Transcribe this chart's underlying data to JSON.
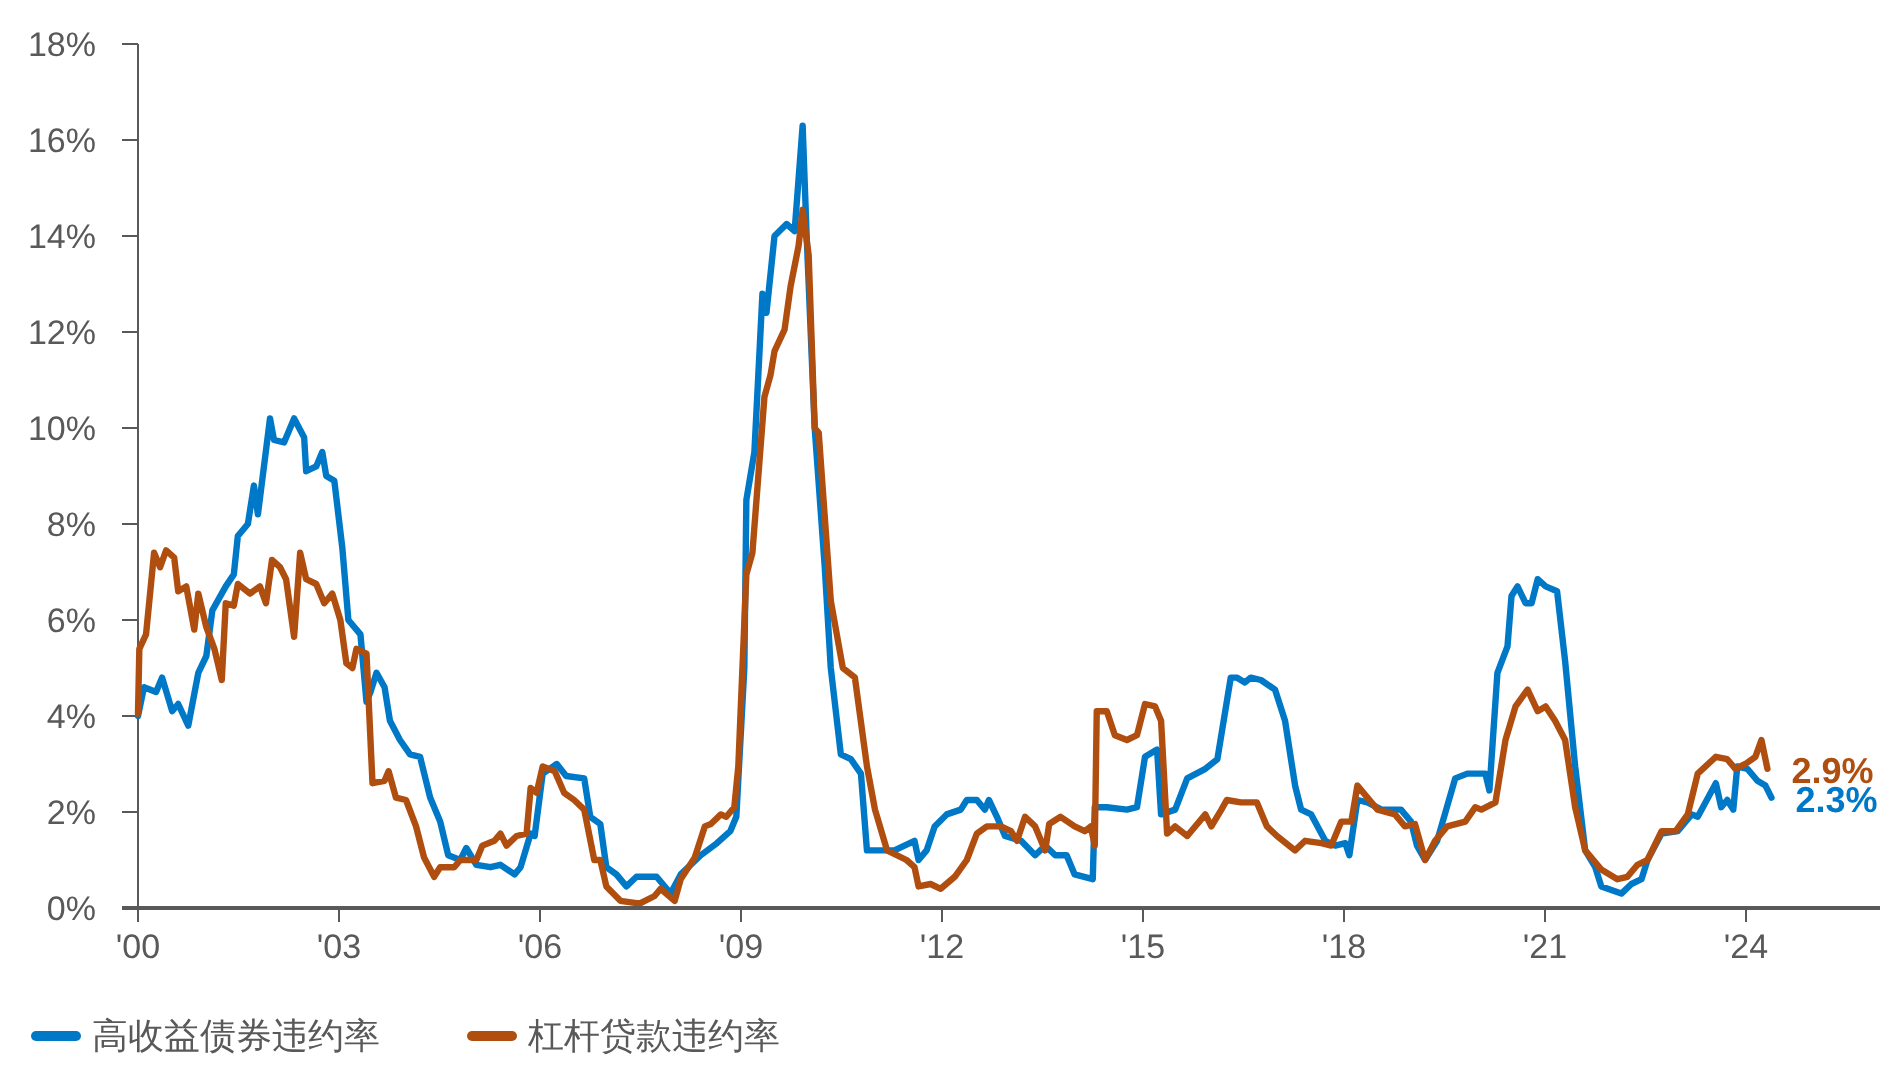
{
  "chart_data": {
    "type": "line",
    "xlim": [
      2000,
      2026
    ],
    "xticks": [
      {
        "value": 2000,
        "label": "'00"
      },
      {
        "value": 2003,
        "label": "'03"
      },
      {
        "value": 2006,
        "label": "'06"
      },
      {
        "value": 2009,
        "label": "'09"
      },
      {
        "value": 2012,
        "label": "'12"
      },
      {
        "value": 2015,
        "label": "'15"
      },
      {
        "value": 2018,
        "label": "'18"
      },
      {
        "value": 2021,
        "label": "'21"
      },
      {
        "value": 2024,
        "label": "'24"
      }
    ],
    "ylim": [
      0,
      18
    ],
    "yticks": [
      {
        "value": 0,
        "label": "0%"
      },
      {
        "value": 2,
        "label": "2%"
      },
      {
        "value": 4,
        "label": "4%"
      },
      {
        "value": 6,
        "label": "6%"
      },
      {
        "value": 8,
        "label": "8%"
      },
      {
        "value": 10,
        "label": "10%"
      },
      {
        "value": 12,
        "label": "12%"
      },
      {
        "value": 14,
        "label": "14%"
      },
      {
        "value": 16,
        "label": "16%"
      },
      {
        "value": 18,
        "label": "18%"
      }
    ],
    "grid": false,
    "legend": "bottom left",
    "line_style": "solid",
    "series": [
      {
        "name": "高收益债券违约率",
        "color": "#0078c8",
        "x": [
          2000.0,
          2000.09,
          2000.27,
          2000.36,
          2000.51,
          2000.6,
          2000.75,
          2000.9,
          2001.02,
          2001.11,
          2001.31,
          2001.43,
          2001.49,
          2001.64,
          2001.73,
          2001.79,
          2001.97,
          2002.03,
          2002.18,
          2002.33,
          2002.48,
          2002.51,
          2002.66,
          2002.75,
          2002.81,
          2002.93,
          2003.05,
          2003.14,
          2003.32,
          2003.41,
          2003.47,
          2003.56,
          2003.68,
          2003.76,
          2003.91,
          2004.06,
          2004.21,
          2004.36,
          2004.51,
          2004.63,
          2004.81,
          2004.9,
          2005.05,
          2005.26,
          2005.41,
          2005.62,
          2005.71,
          2005.86,
          2005.92,
          2006.04,
          2006.25,
          2006.39,
          2006.66,
          2006.75,
          2006.9,
          2006.99,
          2007.14,
          2007.29,
          2007.44,
          2007.74,
          2007.95,
          2008.1,
          2008.4,
          2008.64,
          2008.84,
          2008.93,
          2009.05,
          2009.08,
          2009.2,
          2009.32,
          2009.38,
          2009.5,
          2009.68,
          2009.8,
          2009.92,
          2009.98,
          2010.1,
          2010.25,
          2010.34,
          2010.49,
          2010.64,
          2010.79,
          2010.88,
          2011.29,
          2011.59,
          2011.65,
          2011.77,
          2011.89,
          2012.07,
          2012.28,
          2012.37,
          2012.52,
          2012.64,
          2012.7,
          2012.82,
          2012.94,
          2013.18,
          2013.39,
          2013.54,
          2013.69,
          2013.86,
          2013.98,
          2014.25,
          2014.28,
          2014.46,
          2014.76,
          2014.91,
          2015.03,
          2015.21,
          2015.27,
          2015.48,
          2015.66,
          2015.93,
          2016.11,
          2016.31,
          2016.4,
          2016.52,
          2016.61,
          2016.76,
          2016.97,
          2017.12,
          2017.27,
          2017.36,
          2017.51,
          2017.72,
          2017.87,
          2018.02,
          2018.08,
          2018.2,
          2018.35,
          2018.56,
          2018.85,
          2019.0,
          2019.09,
          2019.21,
          2019.39,
          2019.66,
          2019.84,
          2020.11,
          2020.17,
          2020.29,
          2020.44,
          2020.5,
          2020.59,
          2020.71,
          2020.8,
          2020.89,
          2021.01,
          2021.18,
          2021.3,
          2021.45,
          2021.6,
          2021.75,
          2021.84,
          2022.14,
          2022.29,
          2022.44,
          2022.53,
          2022.74,
          2022.98,
          2023.19,
          2023.28,
          2023.55,
          2023.63,
          2023.72,
          2023.81,
          2023.87,
          2024.02,
          2024.17,
          2024.29,
          2024.38
        ],
        "values": [
          4.0,
          4.6,
          4.5,
          4.8,
          4.1,
          4.25,
          3.8,
          4.9,
          5.25,
          6.2,
          6.7,
          6.95,
          7.75,
          8.0,
          8.8,
          8.2,
          10.2,
          9.75,
          9.7,
          10.2,
          9.8,
          9.1,
          9.2,
          9.5,
          9.0,
          8.9,
          7.5,
          6.0,
          5.7,
          4.3,
          4.5,
          4.9,
          4.6,
          3.9,
          3.5,
          3.2,
          3.15,
          2.3,
          1.8,
          1.1,
          1.0,
          1.25,
          0.9,
          0.85,
          0.9,
          0.7,
          0.85,
          1.55,
          1.5,
          2.8,
          3.0,
          2.75,
          2.7,
          1.9,
          1.75,
          0.85,
          0.7,
          0.45,
          0.65,
          0.65,
          0.3,
          0.7,
          1.1,
          1.35,
          1.6,
          1.9,
          5.0,
          8.5,
          9.5,
          12.8,
          12.4,
          14.0,
          14.25,
          14.1,
          16.3,
          14.0,
          10.0,
          7.1,
          5.0,
          3.2,
          3.1,
          2.8,
          1.2,
          1.2,
          1.4,
          1.0,
          1.2,
          1.7,
          1.95,
          2.05,
          2.25,
          2.25,
          2.05,
          2.25,
          1.9,
          1.5,
          1.4,
          1.1,
          1.3,
          1.1,
          1.1,
          0.7,
          0.6,
          2.1,
          2.1,
          2.05,
          2.1,
          3.15,
          3.3,
          1.95,
          2.05,
          2.7,
          2.9,
          3.1,
          4.8,
          4.8,
          4.7,
          4.8,
          4.75,
          4.55,
          3.9,
          2.55,
          2.05,
          1.95,
          1.4,
          1.3,
          1.35,
          1.1,
          2.25,
          2.2,
          2.05,
          2.05,
          1.8,
          1.3,
          1.0,
          1.4,
          2.7,
          2.8,
          2.8,
          2.45,
          4.9,
          5.45,
          6.5,
          6.7,
          6.35,
          6.35,
          6.85,
          6.7,
          6.6,
          5.15,
          2.95,
          1.2,
          0.85,
          0.45,
          0.3,
          0.5,
          0.6,
          1.0,
          1.55,
          1.6,
          1.95,
          1.9,
          2.6,
          2.1,
          2.25,
          2.05,
          2.95,
          2.9,
          2.65,
          2.55,
          2.3
        ]
      },
      {
        "name": "杠杆贷款违约率",
        "color": "#b04e0f",
        "x": [
          2000.0,
          2000.02,
          2000.12,
          2000.24,
          2000.33,
          2000.42,
          2000.54,
          2000.6,
          2000.72,
          2000.84,
          2000.9,
          2001.02,
          2001.14,
          2001.25,
          2001.31,
          2001.43,
          2001.49,
          2001.67,
          2001.82,
          2001.91,
          2002.0,
          2002.12,
          2002.21,
          2002.33,
          2002.42,
          2002.51,
          2002.66,
          2002.78,
          2002.9,
          2003.02,
          2003.11,
          2003.2,
          2003.26,
          2003.41,
          2003.5,
          2003.68,
          2003.74,
          2003.85,
          2004.0,
          2004.15,
          2004.27,
          2004.42,
          2004.51,
          2004.72,
          2004.81,
          2005.05,
          2005.14,
          2005.32,
          2005.41,
          2005.5,
          2005.65,
          2005.8,
          2005.86,
          2005.95,
          2006.04,
          2006.22,
          2006.36,
          2006.51,
          2006.66,
          2006.81,
          2006.9,
          2006.99,
          2007.2,
          2007.44,
          2007.5,
          2007.71,
          2007.8,
          2008.01,
          2008.1,
          2008.31,
          2008.46,
          2008.55,
          2008.7,
          2008.78,
          2008.9,
          2008.96,
          2009.08,
          2009.17,
          2009.35,
          2009.44,
          2009.5,
          2009.65,
          2009.74,
          2009.86,
          2009.92,
          2010.01,
          2010.1,
          2010.16,
          2010.34,
          2010.52,
          2010.7,
          2010.88,
          2011.0,
          2011.18,
          2011.47,
          2011.59,
          2011.65,
          2011.83,
          2011.98,
          2012.19,
          2012.37,
          2012.52,
          2012.67,
          2012.88,
          2013.03,
          2013.12,
          2013.24,
          2013.39,
          2013.54,
          2013.6,
          2013.77,
          2013.98,
          2014.13,
          2014.22,
          2014.28,
          2014.31,
          2014.46,
          2014.58,
          2014.76,
          2014.91,
          2015.03,
          2015.18,
          2015.27,
          2015.36,
          2015.48,
          2015.66,
          2015.93,
          2016.02,
          2016.17,
          2016.25,
          2016.46,
          2016.7,
          2016.85,
          2017.0,
          2017.27,
          2017.42,
          2017.66,
          2017.81,
          2017.96,
          2018.11,
          2018.2,
          2018.35,
          2018.5,
          2018.76,
          2018.91,
          2019.06,
          2019.21,
          2019.36,
          2019.54,
          2019.81,
          2019.96,
          2020.05,
          2020.26,
          2020.41,
          2020.56,
          2020.74,
          2020.89,
          2021.01,
          2021.15,
          2021.3,
          2021.45,
          2021.6,
          2021.84,
          2022.08,
          2022.23,
          2022.38,
          2022.53,
          2022.74,
          2022.95,
          2023.13,
          2023.28,
          2023.55,
          2023.72,
          2023.84,
          2023.99,
          2024.14,
          2024.23,
          2024.32
        ],
        "values": [
          4.05,
          5.4,
          5.7,
          7.4,
          7.1,
          7.45,
          7.3,
          6.6,
          6.7,
          5.8,
          6.55,
          5.85,
          5.4,
          4.75,
          6.35,
          6.3,
          6.75,
          6.55,
          6.7,
          6.35,
          7.25,
          7.1,
          6.85,
          5.65,
          7.4,
          6.85,
          6.75,
          6.35,
          6.55,
          6.0,
          5.1,
          5.0,
          5.4,
          5.3,
          2.6,
          2.65,
          2.85,
          2.3,
          2.25,
          1.7,
          1.05,
          0.65,
          0.85,
          0.85,
          1.0,
          1.0,
          1.3,
          1.4,
          1.55,
          1.3,
          1.5,
          1.55,
          2.5,
          2.4,
          2.95,
          2.85,
          2.4,
          2.25,
          2.05,
          1.0,
          1.0,
          0.45,
          0.15,
          0.1,
          0.1,
          0.25,
          0.4,
          0.15,
          0.6,
          1.05,
          1.7,
          1.75,
          1.95,
          1.9,
          2.1,
          2.95,
          6.95,
          7.4,
          10.65,
          11.1,
          11.6,
          12.05,
          12.95,
          13.8,
          14.55,
          13.6,
          10.0,
          9.9,
          6.4,
          5.0,
          4.8,
          2.95,
          2.05,
          1.2,
          1.0,
          0.85,
          0.45,
          0.5,
          0.4,
          0.65,
          1.0,
          1.55,
          1.7,
          1.7,
          1.6,
          1.4,
          1.9,
          1.7,
          1.2,
          1.75,
          1.9,
          1.7,
          1.6,
          1.7,
          1.3,
          4.1,
          4.1,
          3.6,
          3.5,
          3.6,
          4.25,
          4.2,
          3.9,
          1.55,
          1.7,
          1.5,
          1.95,
          1.7,
          2.05,
          2.25,
          2.2,
          2.2,
          1.7,
          1.5,
          1.2,
          1.4,
          1.35,
          1.3,
          1.8,
          1.8,
          2.55,
          2.3,
          2.05,
          1.95,
          1.7,
          1.75,
          1.0,
          1.4,
          1.7,
          1.8,
          2.1,
          2.05,
          2.2,
          3.5,
          4.2,
          4.55,
          4.1,
          4.2,
          3.9,
          3.5,
          2.1,
          1.2,
          0.8,
          0.6,
          0.65,
          0.9,
          1.0,
          1.6,
          1.6,
          1.95,
          2.8,
          3.15,
          3.1,
          2.9,
          3.0,
          3.15,
          3.5,
          2.9
        ]
      }
    ],
    "annotations": [
      {
        "text": "2.9%",
        "x": 2024.32,
        "y": 2.9
      },
      {
        "text": "2.3%",
        "x": 2024.38,
        "y": 2.3
      }
    ]
  }
}
